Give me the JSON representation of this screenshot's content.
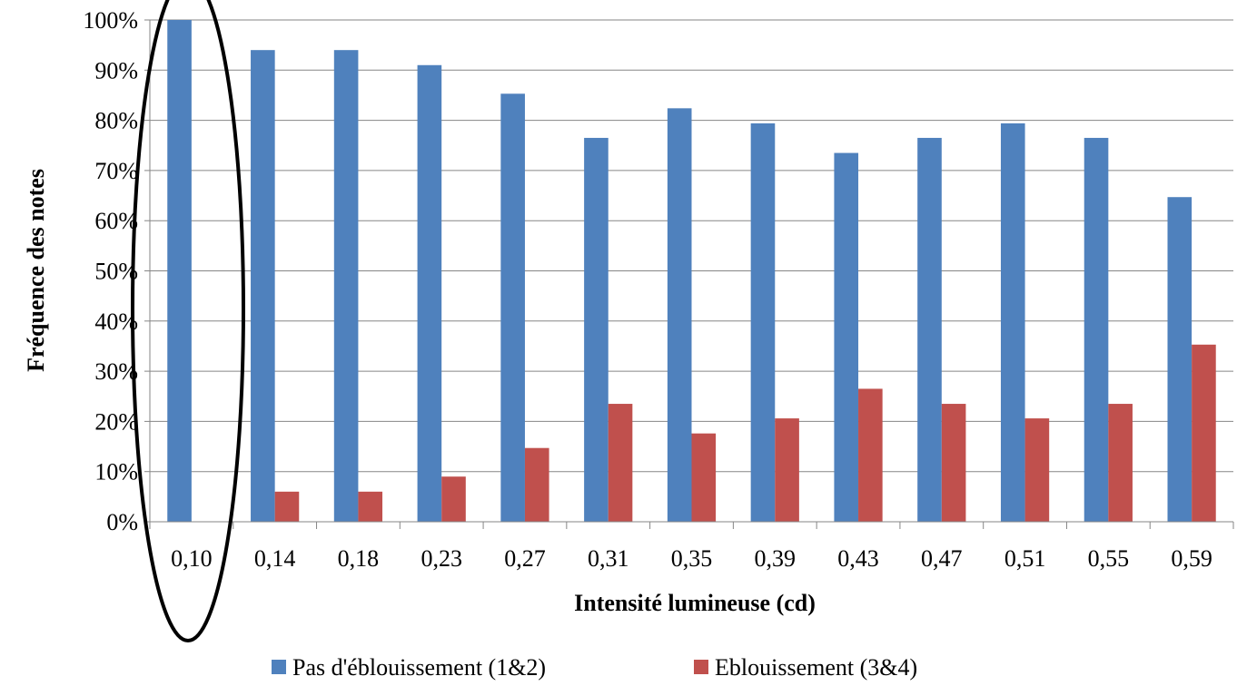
{
  "chart_data": {
    "type": "bar",
    "title": "",
    "xlabel": "Intensité lumineuse (cd)",
    "ylabel": "Fréquence des notes",
    "ylim": [
      0,
      100
    ],
    "ytick_labels": [
      "0%",
      "10%",
      "20%",
      "30%",
      "40%",
      "50%",
      "60%",
      "70%",
      "80%",
      "90%",
      "100%"
    ],
    "categories": [
      "0,10",
      "0,14",
      "0,18",
      "0,23",
      "0,27",
      "0,31",
      "0,35",
      "0,39",
      "0,43",
      "0,47",
      "0,51",
      "0,55",
      "0,59"
    ],
    "series": [
      {
        "name": "Pas d'éblouissement (1&2)",
        "color": "#4f81bd",
        "values": [
          100,
          94,
          94,
          91,
          85.3,
          76.5,
          82.4,
          79.4,
          73.5,
          76.5,
          79.4,
          76.5,
          64.7
        ]
      },
      {
        "name": "Eblouissement (3&4)",
        "color": "#c0504d",
        "values": [
          0,
          6,
          6,
          9,
          14.7,
          23.5,
          17.6,
          20.6,
          26.5,
          23.5,
          20.6,
          23.5,
          35.3
        ]
      }
    ],
    "grid": true,
    "legend_position": "bottom",
    "annotation": {
      "shape": "ellipse",
      "target_category": "0,10",
      "stroke": "#000000"
    }
  }
}
